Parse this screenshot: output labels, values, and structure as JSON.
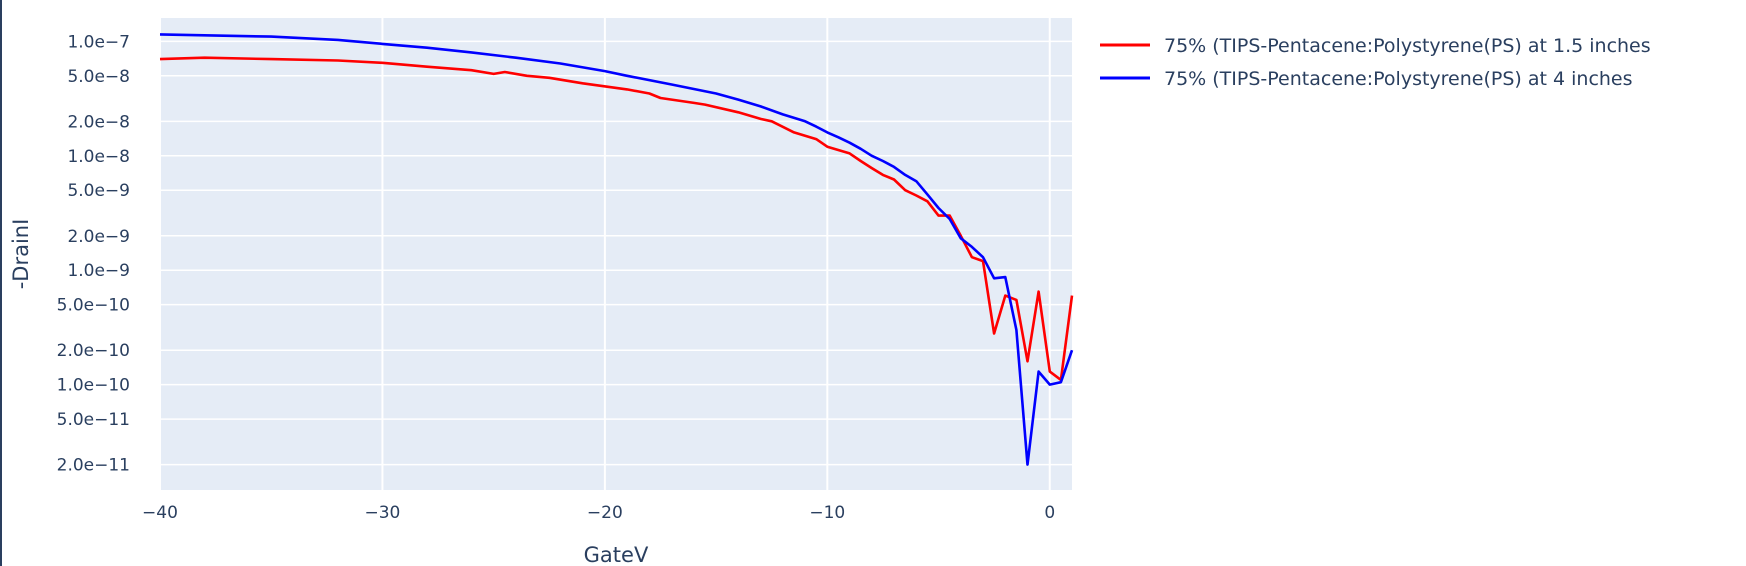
{
  "chart_data": {
    "type": "line",
    "xlabel": "GateV",
    "ylabel": "-DrainI",
    "xlim": [
      -40,
      1
    ],
    "ylim": [
      1.2e-11,
      1.6e-07
    ],
    "y_scale": "log",
    "grid": true,
    "legend_position": "top-right outside",
    "plot_background": "#e5ecf6",
    "x_ticks": [
      {
        "value": -40,
        "label": "−40"
      },
      {
        "value": -30,
        "label": "−30"
      },
      {
        "value": -20,
        "label": "−20"
      },
      {
        "value": -10,
        "label": "−10"
      },
      {
        "value": 0,
        "label": "0"
      }
    ],
    "y_ticks": [
      {
        "value": 1e-07,
        "label": "1.0e−7"
      },
      {
        "value": 5e-08,
        "label": "5.0e−8"
      },
      {
        "value": 2e-08,
        "label": "2.0e−8"
      },
      {
        "value": 1e-08,
        "label": "1.0e−8"
      },
      {
        "value": 5e-09,
        "label": "5.0e−9"
      },
      {
        "value": 2e-09,
        "label": "2.0e−9"
      },
      {
        "value": 1e-09,
        "label": "1.0e−9"
      },
      {
        "value": 5e-10,
        "label": "5.0e−10"
      },
      {
        "value": 2e-10,
        "label": "2.0e−10"
      },
      {
        "value": 1e-10,
        "label": "1.0e−10"
      },
      {
        "value": 5e-11,
        "label": "5.0e−11"
      },
      {
        "value": 2e-11,
        "label": "2.0e−11"
      }
    ],
    "series": [
      {
        "name": "75% (TIPS-Pentacene:Polystyrene(PS) at 1.5 inches",
        "color": "#ff0000",
        "x": [
          -40,
          -38,
          -35,
          -32,
          -30,
          -28,
          -26,
          -25,
          -24.5,
          -23.5,
          -22.5,
          -21,
          -19,
          -18,
          -17.5,
          -16,
          -15.5,
          -14,
          -13,
          -12.5,
          -11.5,
          -10.5,
          -10,
          -9,
          -8.5,
          -8,
          -7.5,
          -7,
          -6.5,
          -6,
          -5.5,
          -5,
          -4.5,
          -4,
          -3.5,
          -3,
          -2.5,
          -2,
          -1.5,
          -1,
          -0.5,
          0,
          0.5,
          1
        ],
        "y": [
          7e-08,
          7.2e-08,
          7e-08,
          6.8e-08,
          6.5e-08,
          6e-08,
          5.6e-08,
          5.2e-08,
          5.4e-08,
          5e-08,
          4.8e-08,
          4.3e-08,
          3.8e-08,
          3.5e-08,
          3.2e-08,
          2.9e-08,
          2.8e-08,
          2.4e-08,
          2.1e-08,
          2e-08,
          1.6e-08,
          1.4e-08,
          1.2e-08,
          1.05e-08,
          9e-09,
          7.8e-09,
          6.8e-09,
          6.2e-09,
          5e-09,
          4.5e-09,
          4e-09,
          3e-09,
          3e-09,
          2e-09,
          1.3e-09,
          1.2e-09,
          2.8e-10,
          6e-10,
          5.5e-10,
          1.6e-10,
          6.5e-10,
          1.3e-10,
          1.1e-10,
          6e-10
        ]
      },
      {
        "name": "75% (TIPS-Pentacene:Polystyrene(PS) at 4 inches",
        "color": "#0000ff",
        "x": [
          -40,
          -38,
          -35,
          -32,
          -30,
          -28,
          -26,
          -24,
          -22,
          -20,
          -19,
          -17,
          -15,
          -14,
          -13,
          -12,
          -11,
          -10.5,
          -10,
          -9.5,
          -9,
          -8.5,
          -8,
          -7.5,
          -7,
          -6.5,
          -6,
          -5.5,
          -5,
          -4.5,
          -4,
          -3.5,
          -3,
          -2.5,
          -2,
          -1.5,
          -1,
          -0.5,
          0,
          0.5,
          1
        ],
        "y": [
          1.15e-07,
          1.13e-07,
          1.1e-07,
          1.03e-07,
          9.5e-08,
          8.8e-08,
          8e-08,
          7.2e-08,
          6.4e-08,
          5.5e-08,
          5e-08,
          4.2e-08,
          3.5e-08,
          3.1e-08,
          2.7e-08,
          2.3e-08,
          2e-08,
          1.8e-08,
          1.6e-08,
          1.45e-08,
          1.3e-08,
          1.15e-08,
          1e-08,
          9e-09,
          8e-09,
          6.8e-09,
          6e-09,
          4.6e-09,
          3.5e-09,
          2.8e-09,
          1.9e-09,
          1.6e-09,
          1.3e-09,
          8.5e-10,
          8.7e-10,
          3e-10,
          2e-11,
          1.3e-10,
          1e-10,
          1.05e-10,
          2e-10
        ]
      }
    ]
  }
}
